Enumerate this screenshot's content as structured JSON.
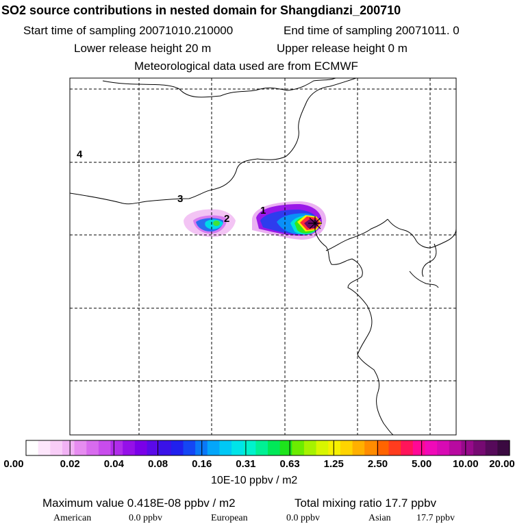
{
  "header": {
    "title": "SO2 source contributions in nested domain for Shangdianzi_200710",
    "start_label": "Start time of sampling 20071010.210000",
    "end_label": "End time of sampling 20071011.     0",
    "lower_label": "Lower release height   20 m",
    "upper_label": "Upper release height    0 m",
    "met_label": "Meteorological data used are from ECMWF"
  },
  "chart_data": {
    "type": "heatmap",
    "title": "SO2 source contributions in nested domain for Shangdianzi_200710",
    "region_labels": [
      "1",
      "2",
      "3",
      "4"
    ],
    "colorbar": {
      "tick_labels": [
        "0.00",
        "0.02",
        "0.04",
        "0.08",
        "0.16",
        "0.31",
        "0.63",
        "1.25",
        "2.50",
        "5.00",
        "10.00",
        "20.00"
      ],
      "unit": "10E-10 ppbv / m2",
      "colors": [
        "#ffffff",
        "#fde6fb",
        "#f8cdf7",
        "#f1b2f4",
        "#e68cf0",
        "#d86bee",
        "#c84cec",
        "#b02cea",
        "#9510e8",
        "#7a00e8",
        "#5a0ae8",
        "#3a12e8",
        "#2020ee",
        "#1446f4",
        "#0a78f8",
        "#04a6fa",
        "#00c8f6",
        "#00e4e8",
        "#00f2cc",
        "#00f094",
        "#00e858",
        "#1ee41c",
        "#6cec00",
        "#a6f200",
        "#d8f600",
        "#f6f000",
        "#ffd400",
        "#ffb000",
        "#ff8c00",
        "#ff6400",
        "#ff3c1e",
        "#ff145a",
        "#ff0896",
        "#f00ab8",
        "#d80ab4",
        "#b80aa0",
        "#960a8a",
        "#760a72",
        "#560a5a",
        "#3a0a40"
      ]
    },
    "stats": {
      "max_label": "Maximum value  0.418E-08 ppbv / m2",
      "total_label": "Total mixing ratio      17.7 ppbv",
      "american_label": "American",
      "american_value": "0.0 ppbv",
      "european_label": "European",
      "european_value": "0.0 ppbv",
      "asian_label": "Asian",
      "asian_value": "17.7 ppbv"
    }
  }
}
